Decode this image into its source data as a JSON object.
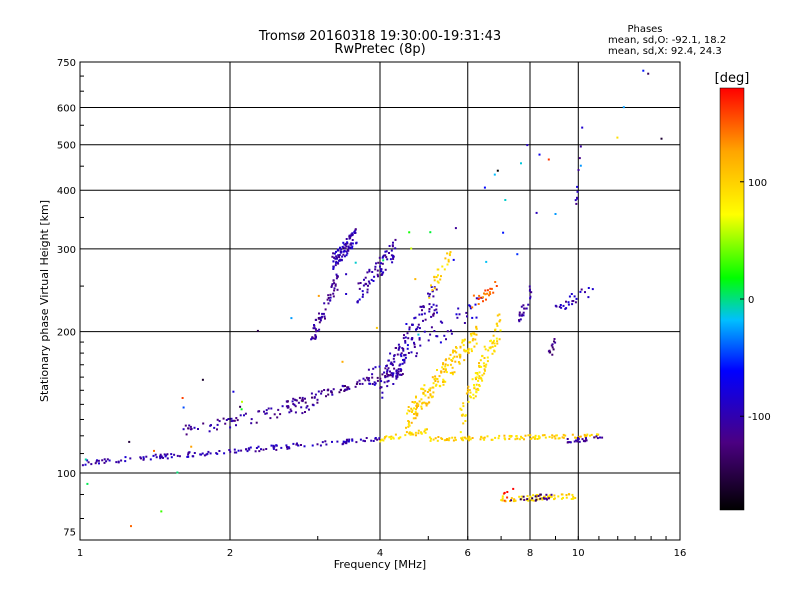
{
  "chart_data": {
    "type": "scatter",
    "title": "Tromsø 20160318 19:30:00-19:31:43",
    "subtitle": "RwPretec (8p)",
    "xlabel": "Frequency [MHz]",
    "ylabel": "Stationary phase Virtual Height [km]",
    "x_scale": "log",
    "y_scale": "log",
    "xlim": [
      1,
      16
    ],
    "ylim": [
      72,
      750
    ],
    "x_ticks": [
      1,
      2,
      4,
      6,
      8,
      10,
      16
    ],
    "y_ticks": [
      75,
      100,
      200,
      300,
      400,
      500,
      600,
      750
    ],
    "grid": true,
    "stats": {
      "heading": "Phases",
      "line_o": "mean, sd,O: -92.1, 18.2",
      "line_x": "mean, sd,X:  92.4, 24.3"
    },
    "colorbar": {
      "label": "[deg]",
      "range": [
        -180,
        180
      ],
      "ticks": [
        100,
        0,
        -100
      ],
      "colors": [
        "#000000",
        "#4b0082",
        "#0000ff",
        "#00bfff",
        "#00ff00",
        "#ffff00",
        "#ffa500",
        "#ff0000"
      ]
    },
    "series": [
      {
        "traces": [
          {
            "x0": 1.0,
            "x1": 4.0,
            "h0": 105,
            "h1": 118,
            "n": 150,
            "jitter": 0.012,
            "phase": -100
          },
          {
            "x0": 4.0,
            "x1": 5.0,
            "h0": 118,
            "h1": 123,
            "n": 40,
            "jitter": 0.012,
            "phase": 95
          },
          {
            "x0": 5.0,
            "x1": 11.0,
            "h0": 118,
            "h1": 120,
            "n": 110,
            "jitter": 0.01,
            "phase": 100
          },
          {
            "x0": 9.5,
            "x1": 11.2,
            "h0": 117,
            "h1": 119,
            "n": 25,
            "jitter": 0.01,
            "phase": -105
          },
          {
            "x0": 1.6,
            "x1": 3.0,
            "h0": 122,
            "h1": 140,
            "n": 70,
            "jitter": 0.03,
            "phase": -110
          },
          {
            "x0": 2.6,
            "x1": 4.5,
            "h0": 140,
            "h1": 165,
            "n": 90,
            "jitter": 0.02,
            "phase": -115
          },
          {
            "x0": 3.2,
            "x1": 3.6,
            "h0": 280,
            "h1": 320,
            "n": 90,
            "jitter": 0.04,
            "phase": -100
          },
          {
            "x0": 3.6,
            "x1": 4.3,
            "h0": 240,
            "h1": 300,
            "n": 70,
            "jitter": 0.05,
            "phase": -100
          },
          {
            "x0": 2.9,
            "x1": 3.3,
            "h0": 190,
            "h1": 260,
            "n": 60,
            "jitter": 0.05,
            "phase": -110
          },
          {
            "x0": 4.0,
            "x1": 5.2,
            "h0": 150,
            "h1": 240,
            "n": 120,
            "jitter": 0.08,
            "phase": -105
          },
          {
            "x0": 4.5,
            "x1": 6.3,
            "h0": 130,
            "h1": 200,
            "n": 170,
            "jitter": 0.06,
            "phase": 100
          },
          {
            "x0": 5.8,
            "x1": 7.0,
            "h0": 130,
            "h1": 210,
            "n": 100,
            "jitter": 0.07,
            "phase": 95
          },
          {
            "x0": 3.8,
            "x1": 6.5,
            "h0": 160,
            "h1": 230,
            "n": 60,
            "jitter": 0.06,
            "phase": -95
          },
          {
            "x0": 5.0,
            "x1": 5.6,
            "h0": 240,
            "h1": 300,
            "n": 25,
            "jitter": 0.04,
            "phase": 100
          },
          {
            "x0": 6.1,
            "x1": 6.9,
            "h0": 230,
            "h1": 250,
            "n": 22,
            "jitter": 0.03,
            "phase": 150
          },
          {
            "x0": 7.6,
            "x1": 8.1,
            "h0": 210,
            "h1": 250,
            "n": 22,
            "jitter": 0.04,
            "phase": -110
          },
          {
            "x0": 8.7,
            "x1": 9.0,
            "h0": 175,
            "h1": 190,
            "n": 12,
            "jitter": 0.03,
            "phase": -120
          },
          {
            "x0": 9.0,
            "x1": 10.7,
            "h0": 225,
            "h1": 245,
            "n": 25,
            "jitter": 0.03,
            "phase": -100
          },
          {
            "x0": 7.0,
            "x1": 10.0,
            "h0": 88,
            "h1": 89,
            "n": 60,
            "jitter": 0.015,
            "phase": 95
          },
          {
            "x0": 7.2,
            "x1": 9.0,
            "h0": 88,
            "h1": 89,
            "n": 20,
            "jitter": 0.015,
            "phase": -130
          },
          {
            "x0": 7.0,
            "x1": 7.5,
            "h0": 88,
            "h1": 92,
            "n": 6,
            "jitter": 0.02,
            "phase": 170
          },
          {
            "x0": 9.8,
            "x1": 10.2,
            "h0": 330,
            "h1": 560,
            "n": 10,
            "jitter": 0.05,
            "phase": -100
          },
          {
            "x0": 1.0,
            "x1": 16.0,
            "h0": 80,
            "h1": 650,
            "n": 55,
            "jitter": 0.3,
            "phase": 0
          }
        ]
      }
    ]
  }
}
